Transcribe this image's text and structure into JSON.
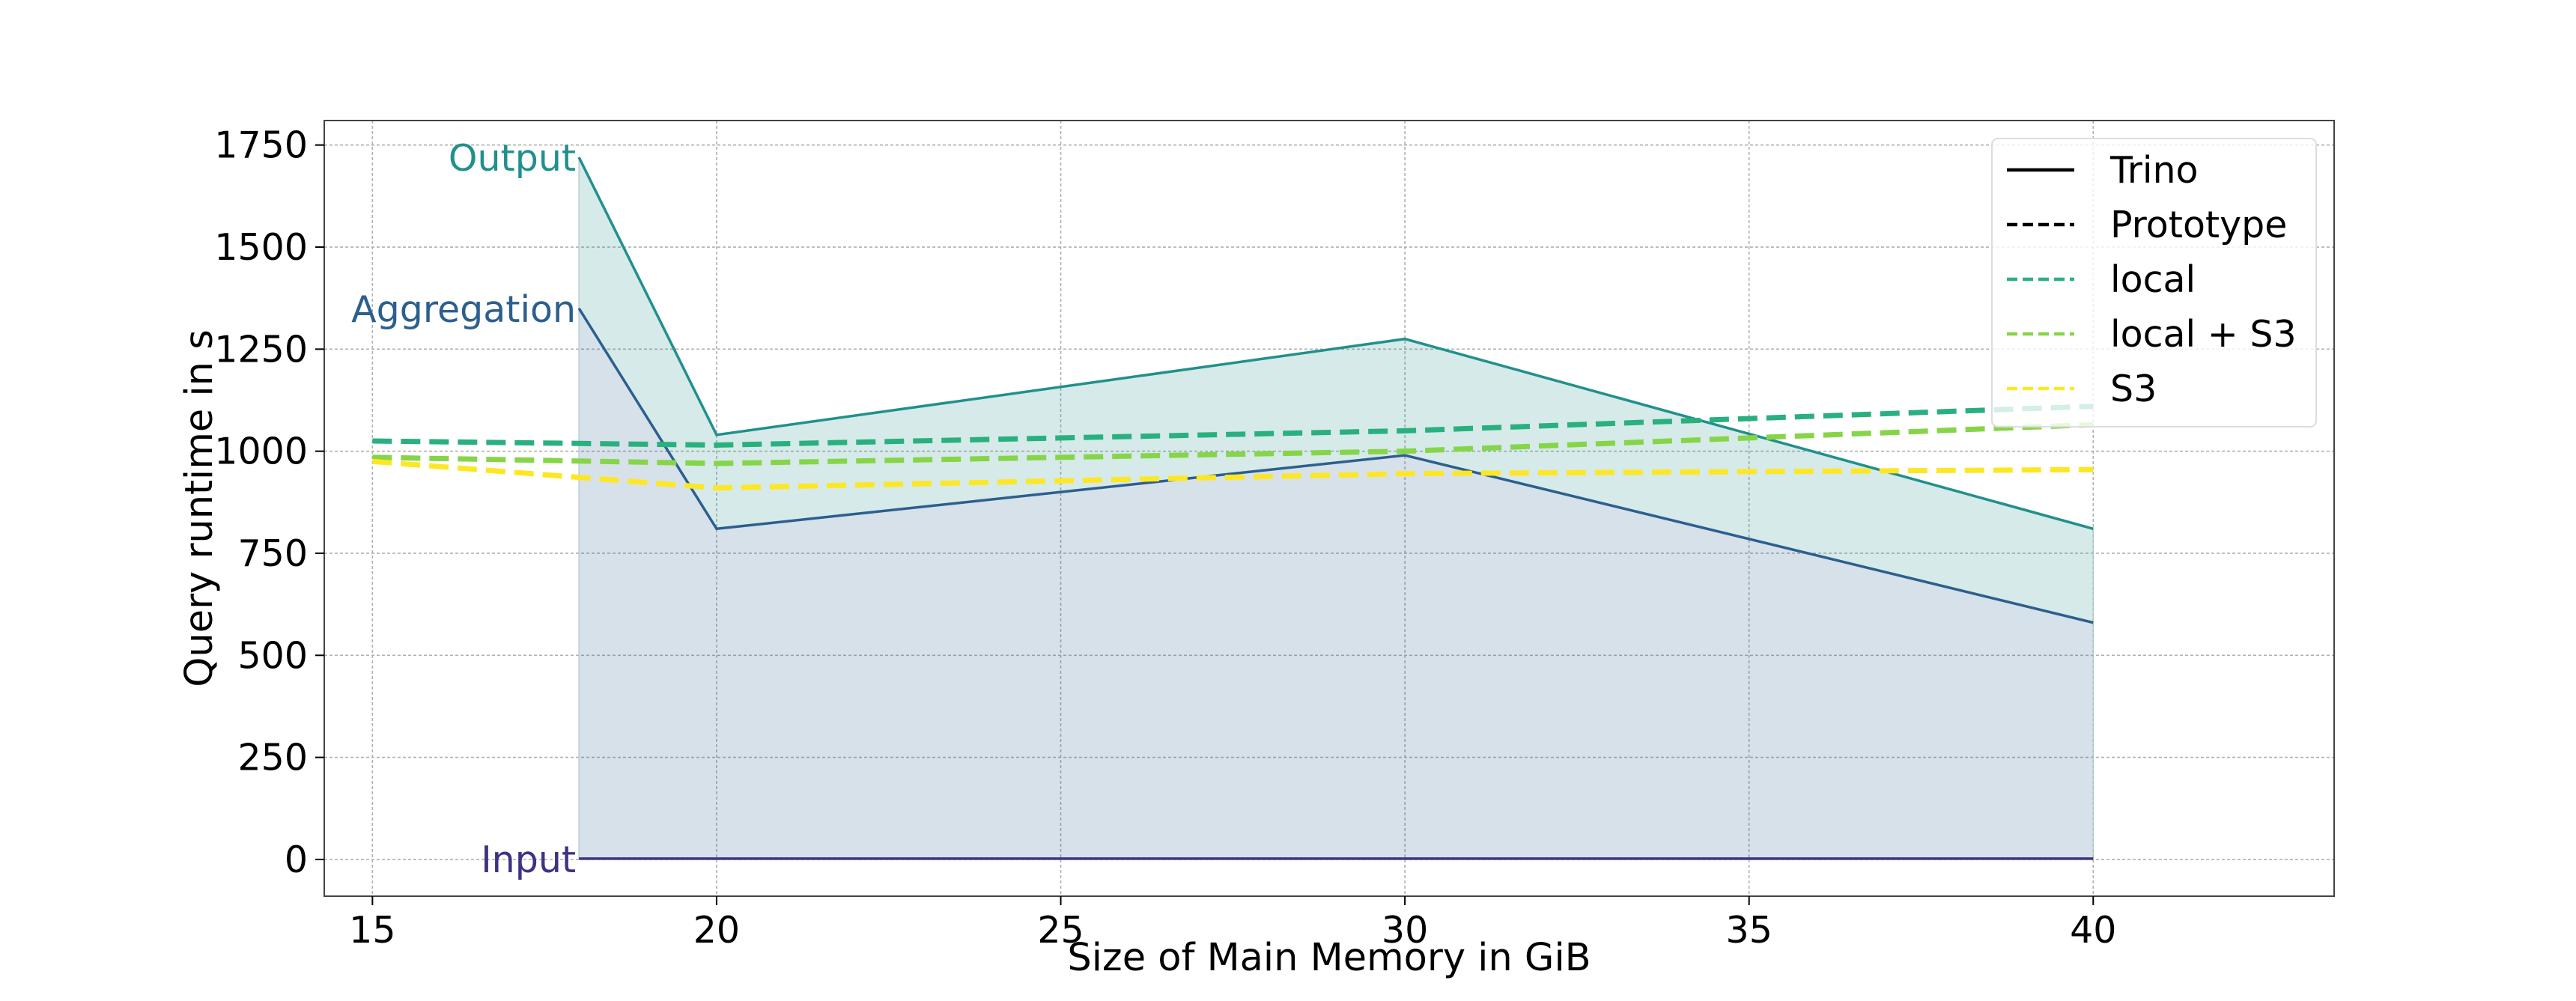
{
  "chart_data": {
    "type": "area",
    "title": "",
    "xlabel": "Size of Main Memory in GiB",
    "ylabel": "Query runtime in s",
    "xlim": [
      14.3,
      43.5
    ],
    "ylim": [
      -90,
      1810
    ],
    "xticks": [
      15,
      20,
      25,
      30,
      35,
      40
    ],
    "yticks": [
      0,
      250,
      500,
      750,
      1000,
      1250,
      1500,
      1750
    ],
    "grid": true,
    "legend_position": "top-right",
    "legend": [
      {
        "label": "Trino",
        "style": "solid",
        "color": "#000000"
      },
      {
        "label": "Prototype",
        "style": "dashed",
        "color": "#000000"
      },
      {
        "label": "local",
        "style": "dashed",
        "color": "#2ab07f"
      },
      {
        "label": "local + S3",
        "style": "dashed",
        "color": "#86d549"
      },
      {
        "label": "S3",
        "style": "dashed",
        "color": "#fde725"
      }
    ],
    "stacked": {
      "name": "Trino",
      "x": [
        18,
        20,
        30,
        40
      ],
      "layers": [
        {
          "name": "Input",
          "values": [
            2,
            2,
            2,
            2
          ],
          "line_color": "#3b3483",
          "fill_color": "#3b3483",
          "fill_opacity": 0.0
        },
        {
          "name": "Aggregation",
          "values": [
            1350,
            810,
            990,
            580
          ],
          "line_color": "#2c5f8e",
          "fill_color": "#2c5f8e",
          "fill_opacity": 0.19
        },
        {
          "name": "Output",
          "values": [
            1720,
            1040,
            1275,
            810
          ],
          "line_color": "#21908c",
          "fill_color": "#21908c",
          "fill_opacity": 0.19
        }
      ]
    },
    "series": [
      {
        "name": "local",
        "color": "#2ab07f",
        "x": [
          15,
          20,
          30,
          40
        ],
        "values": [
          1025,
          1015,
          1050,
          1110
        ]
      },
      {
        "name": "local + S3",
        "color": "#86d549",
        "x": [
          15,
          20,
          30,
          40
        ],
        "values": [
          985,
          970,
          1000,
          1065
        ]
      },
      {
        "name": "S3",
        "color": "#fde725",
        "x": [
          15,
          20,
          30,
          40
        ],
        "values": [
          975,
          910,
          945,
          955
        ]
      }
    ]
  }
}
